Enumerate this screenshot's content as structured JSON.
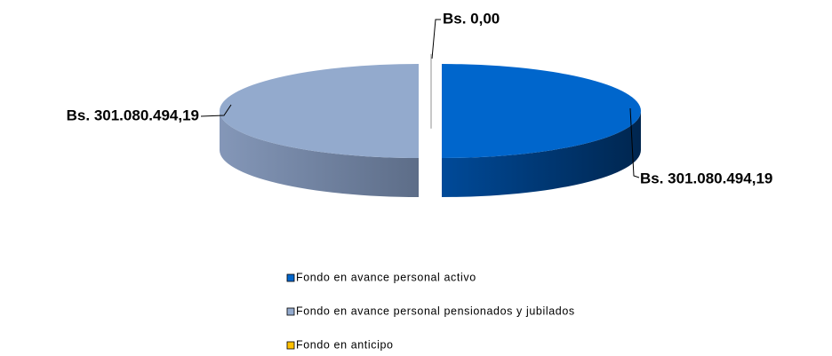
{
  "chart_data": {
    "type": "pie",
    "categories": [
      "Fondo en avance personal activo",
      "Fondo en avance personal pensionados y jubilados",
      "Fondo en anticipo"
    ],
    "values": [
      301080494.19,
      301080494.19,
      0
    ],
    "value_labels": [
      "Bs. 301.080.494,19",
      "Bs. 301.080.494,19",
      "Bs. 0,00"
    ],
    "colors": [
      "#0066CC",
      "#93AACD",
      "#FFC000"
    ],
    "legend": "bottom"
  }
}
